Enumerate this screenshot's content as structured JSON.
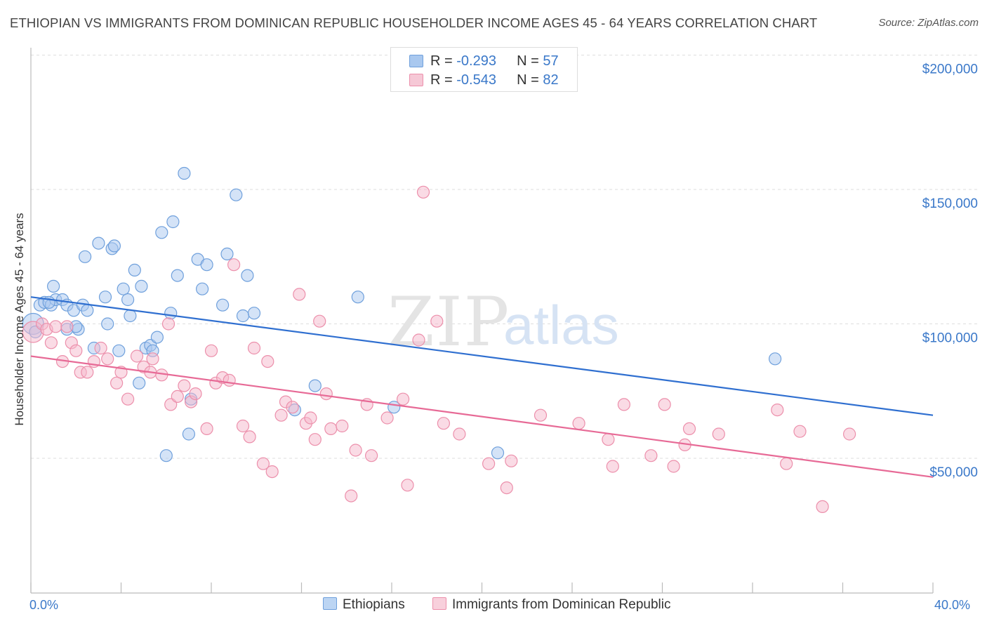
{
  "title": "ETHIOPIAN VS IMMIGRANTS FROM DOMINICAN REPUBLIC HOUSEHOLDER INCOME AGES 45 - 64 YEARS CORRELATION CHART",
  "source": "Source: ZipAtlas.com",
  "watermark": {
    "zip": "ZIP",
    "atlas": "atlas"
  },
  "colors": {
    "blue_fill": "#a9c8ef",
    "blue_stroke": "#6fa0dc",
    "blue_line": "#2f6fd0",
    "pink_fill": "#f6b8cb",
    "pink_stroke": "#ec8fab",
    "pink_line": "#e76a96",
    "axis_text": "#3a78c9",
    "grid": "#dddddd"
  },
  "legend": {
    "rows": [
      {
        "r_label": "R = ",
        "r_value": "-0.293",
        "n_label": "N = ",
        "n_value": "57"
      },
      {
        "r_label": "R = ",
        "r_value": "-0.543",
        "n_label": "N = ",
        "n_value": "82"
      }
    ]
  },
  "chart_data": {
    "type": "scatter",
    "title": "ETHIOPIAN VS IMMIGRANTS FROM DOMINICAN REPUBLIC HOUSEHOLDER INCOME AGES 45 - 64 YEARS CORRELATION CHART",
    "xlabel": "",
    "ylabel": "Householder Income Ages 45 - 64 years",
    "xlim": [
      0,
      40
    ],
    "ylim": [
      0,
      205000
    ],
    "x_tick_labels": [
      "0.0%",
      "40.0%"
    ],
    "y_ticks": [
      {
        "value": 50000,
        "label": "$50,000"
      },
      {
        "value": 100000,
        "label": "$100,000"
      },
      {
        "value": 150000,
        "label": "$150,000"
      },
      {
        "value": 200000,
        "label": "$200,000"
      }
    ],
    "series": [
      {
        "name": "Ethiopians",
        "color": "blue",
        "trend": {
          "x": [
            0,
            40
          ],
          "y": [
            110000,
            66000
          ]
        },
        "points": [
          [
            0.1,
            100000
          ],
          [
            0.2,
            97000
          ],
          [
            0.4,
            107000
          ],
          [
            0.6,
            108000
          ],
          [
            0.9,
            107000
          ],
          [
            1.0,
            114000
          ],
          [
            1.1,
            109000
          ],
          [
            1.4,
            109000
          ],
          [
            1.6,
            107000
          ],
          [
            1.6,
            98000
          ],
          [
            1.9,
            105000
          ],
          [
            2.1,
            98000
          ],
          [
            2.3,
            107000
          ],
          [
            2.5,
            105000
          ],
          [
            2.4,
            125000
          ],
          [
            2.8,
            91000
          ],
          [
            3.0,
            130000
          ],
          [
            3.3,
            110000
          ],
          [
            3.4,
            100000
          ],
          [
            3.6,
            128000
          ],
          [
            3.7,
            129000
          ],
          [
            3.9,
            90000
          ],
          [
            4.1,
            113000
          ],
          [
            4.3,
            109000
          ],
          [
            4.4,
            103000
          ],
          [
            4.6,
            120000
          ],
          [
            4.8,
            78000
          ],
          [
            4.9,
            114000
          ],
          [
            5.1,
            91000
          ],
          [
            5.3,
            92000
          ],
          [
            5.4,
            90000
          ],
          [
            5.6,
            95000
          ],
          [
            5.8,
            134000
          ],
          [
            6.0,
            51000
          ],
          [
            6.2,
            104000
          ],
          [
            6.3,
            138000
          ],
          [
            6.5,
            118000
          ],
          [
            6.8,
            156000
          ],
          [
            7.0,
            59000
          ],
          [
            7.1,
            72000
          ],
          [
            7.4,
            124000
          ],
          [
            7.6,
            113000
          ],
          [
            7.8,
            122000
          ],
          [
            8.5,
            107000
          ],
          [
            8.7,
            126000
          ],
          [
            9.1,
            148000
          ],
          [
            9.4,
            103000
          ],
          [
            9.6,
            118000
          ],
          [
            9.9,
            104000
          ],
          [
            11.7,
            68000
          ],
          [
            12.6,
            77000
          ],
          [
            14.5,
            110000
          ],
          [
            16.1,
            69000
          ],
          [
            20.7,
            52000
          ],
          [
            33.0,
            87000
          ],
          [
            2.0,
            99000
          ],
          [
            0.8,
            108000
          ]
        ]
      },
      {
        "name": "Immigrants from Dominican Republic",
        "color": "pink",
        "trend": {
          "x": [
            0,
            40
          ],
          "y": [
            88000,
            43000
          ]
        },
        "points": [
          [
            0.1,
            97000
          ],
          [
            0.5,
            100000
          ],
          [
            0.7,
            98000
          ],
          [
            0.9,
            93000
          ],
          [
            1.1,
            99000
          ],
          [
            1.4,
            86000
          ],
          [
            1.6,
            99000
          ],
          [
            1.8,
            93000
          ],
          [
            2.0,
            90000
          ],
          [
            2.2,
            82000
          ],
          [
            2.5,
            82000
          ],
          [
            2.8,
            86000
          ],
          [
            3.1,
            91000
          ],
          [
            3.4,
            87000
          ],
          [
            3.8,
            78000
          ],
          [
            4.0,
            82000
          ],
          [
            4.3,
            72000
          ],
          [
            4.7,
            88000
          ],
          [
            5.0,
            84000
          ],
          [
            5.3,
            82000
          ],
          [
            5.4,
            87000
          ],
          [
            5.8,
            81000
          ],
          [
            6.1,
            100000
          ],
          [
            6.2,
            70000
          ],
          [
            6.5,
            73000
          ],
          [
            6.8,
            77000
          ],
          [
            7.1,
            71000
          ],
          [
            7.3,
            74000
          ],
          [
            7.8,
            61000
          ],
          [
            8.0,
            90000
          ],
          [
            8.2,
            78000
          ],
          [
            8.5,
            80000
          ],
          [
            8.8,
            79000
          ],
          [
            9.0,
            122000
          ],
          [
            9.4,
            62000
          ],
          [
            9.7,
            58000
          ],
          [
            9.9,
            91000
          ],
          [
            10.3,
            48000
          ],
          [
            10.5,
            86000
          ],
          [
            10.7,
            45000
          ],
          [
            11.1,
            66000
          ],
          [
            11.3,
            71000
          ],
          [
            11.6,
            69000
          ],
          [
            11.9,
            111000
          ],
          [
            12.2,
            63000
          ],
          [
            12.4,
            65000
          ],
          [
            12.6,
            57000
          ],
          [
            12.8,
            101000
          ],
          [
            13.1,
            74000
          ],
          [
            13.3,
            61000
          ],
          [
            13.8,
            62000
          ],
          [
            14.2,
            36000
          ],
          [
            14.4,
            53000
          ],
          [
            14.9,
            70000
          ],
          [
            15.1,
            51000
          ],
          [
            15.8,
            65000
          ],
          [
            16.5,
            72000
          ],
          [
            16.7,
            40000
          ],
          [
            17.2,
            94000
          ],
          [
            17.4,
            149000
          ],
          [
            18.0,
            101000
          ],
          [
            18.3,
            63000
          ],
          [
            19.0,
            59000
          ],
          [
            20.3,
            48000
          ],
          [
            21.1,
            39000
          ],
          [
            21.3,
            49000
          ],
          [
            22.6,
            66000
          ],
          [
            24.3,
            63000
          ],
          [
            25.6,
            57000
          ],
          [
            25.8,
            47000
          ],
          [
            26.3,
            70000
          ],
          [
            27.5,
            51000
          ],
          [
            28.1,
            70000
          ],
          [
            28.5,
            47000
          ],
          [
            29.0,
            55000
          ],
          [
            29.2,
            61000
          ],
          [
            30.5,
            59000
          ],
          [
            33.1,
            68000
          ],
          [
            33.5,
            48000
          ],
          [
            34.1,
            60000
          ],
          [
            35.1,
            32000
          ],
          [
            36.3,
            59000
          ]
        ]
      }
    ]
  }
}
